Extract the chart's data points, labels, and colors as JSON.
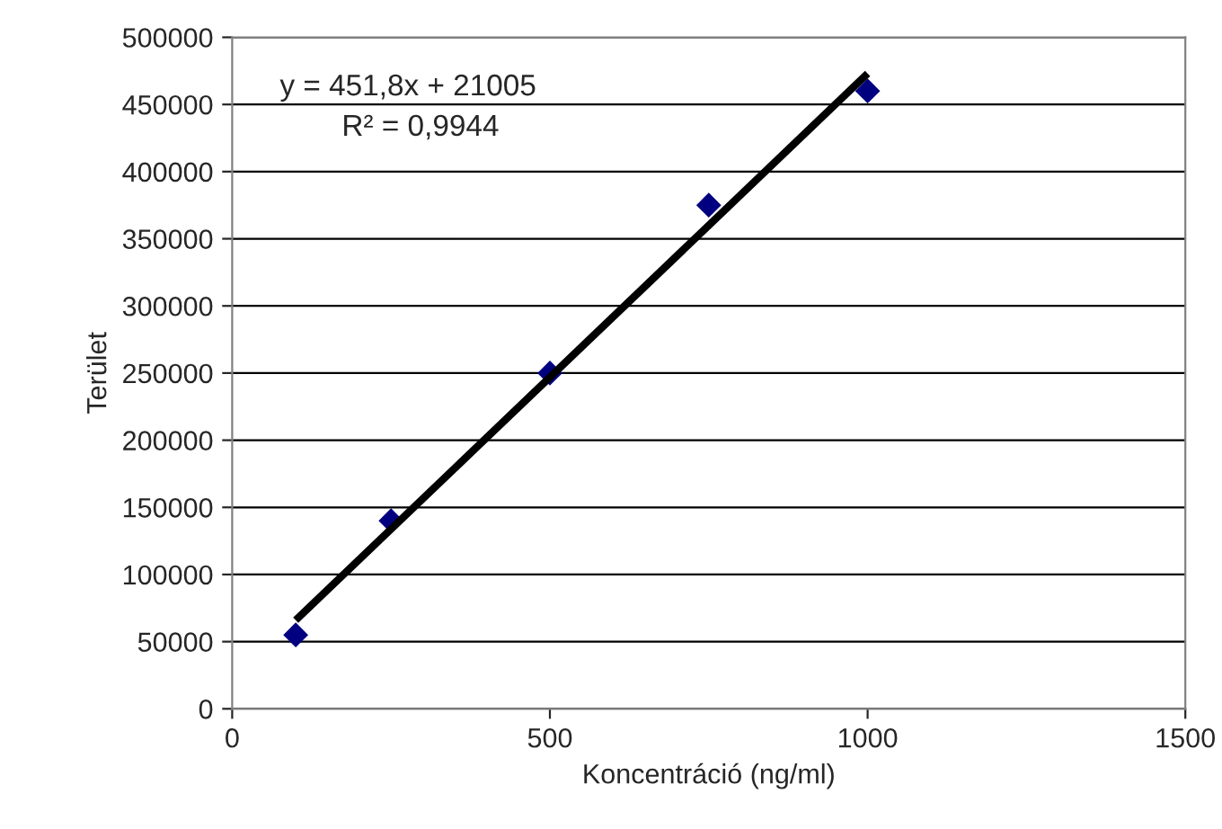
{
  "chart_data": {
    "type": "scatter",
    "xlabel": "Koncentráció (ng/ml)",
    "ylabel": "Terület",
    "xlim": [
      0,
      1500
    ],
    "xticks": [
      0,
      500,
      1000,
      1500
    ],
    "ylim": [
      0,
      500000
    ],
    "yticks": [
      0,
      50000,
      100000,
      150000,
      200000,
      250000,
      300000,
      350000,
      400000,
      450000,
      500000
    ],
    "grid": "y",
    "marker": "diamond",
    "series": [
      {
        "color": "#000080",
        "x": [
          100,
          250,
          500,
          750,
          1000
        ],
        "values": [
          55000,
          140000,
          250000,
          375000,
          460000
        ]
      },
      {
        "type": "line",
        "color": "#000000",
        "x": [
          100,
          1000
        ],
        "values": [
          66000,
          473000
        ],
        "marker": "none",
        "line_style": "solid"
      }
    ],
    "annotations": [
      "y = 451,8x + 21005",
      "R² = 0,9944"
    ]
  }
}
